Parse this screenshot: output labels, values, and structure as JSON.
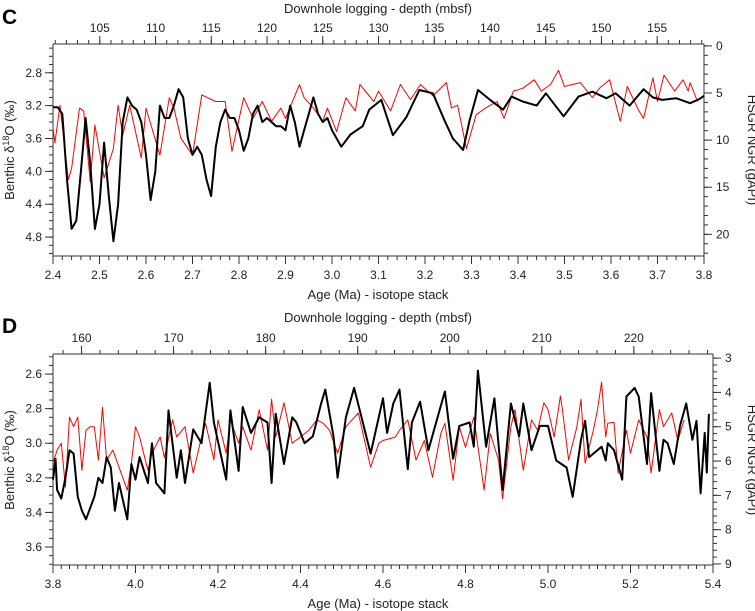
{
  "chart_data": [
    {
      "type": "line",
      "panel_label": "C",
      "top_axis_title": "Downhole logging - depth (mbsf)",
      "xlabel": "Age (Ma) - isotope stack",
      "ylabel_prefix": "Benthic δ",
      "ylabel_sup": "18",
      "ylabel_suffix": "O (‰)",
      "y2label": "HSGR NGR (gAPI)",
      "xlim": [
        2.4,
        3.8
      ],
      "ylim": [
        2.45,
        5.03
      ],
      "y2lim": [
        -0.2,
        22.3
      ],
      "toplim": [
        100.8,
        159.2
      ],
      "x_ticks": [
        "2.4",
        "2.5",
        "2.6",
        "2.7",
        "2.8",
        "2.9",
        "3.0",
        "3.1",
        "3.2",
        "3.3",
        "3.4",
        "3.5",
        "3.6",
        "3.7",
        "3.8"
      ],
      "x_minor_step": 0.02,
      "y_ticks": [
        "2.8",
        "3.2",
        "3.6",
        "4.0",
        "4.4",
        "4.8"
      ],
      "y_minor_step": 0.1,
      "y2_ticks": [
        "0",
        "5",
        "10",
        "15",
        "20"
      ],
      "y2_minor_step": 1,
      "top_ticks": [
        "105",
        "110",
        "115",
        "120",
        "125",
        "130",
        "135",
        "140",
        "145",
        "150",
        "155"
      ],
      "top_minor_step": 1,
      "y_reversed": true,
      "series": [
        {
          "name": "Benthic δ18O",
          "axis": "left",
          "color": "#000000",
          "x": [
            2.4,
            2.41,
            2.42,
            2.43,
            2.44,
            2.45,
            2.46,
            2.47,
            2.48,
            2.49,
            2.5,
            2.51,
            2.52,
            2.53,
            2.54,
            2.55,
            2.56,
            2.57,
            2.58,
            2.59,
            2.6,
            2.61,
            2.62,
            2.63,
            2.64,
            2.65,
            2.66,
            2.67,
            2.68,
            2.69,
            2.7,
            2.71,
            2.72,
            2.73,
            2.74,
            2.75,
            2.76,
            2.77,
            2.78,
            2.79,
            2.8,
            2.81,
            2.82,
            2.83,
            2.84,
            2.85,
            2.86,
            2.87,
            2.88,
            2.89,
            2.9,
            2.91,
            2.92,
            2.93,
            2.94,
            2.95,
            2.96,
            2.97,
            2.98,
            2.99,
            3.0,
            3.02,
            3.04,
            3.066,
            3.08,
            3.106,
            3.131,
            3.16,
            3.188,
            3.217,
            3.242,
            3.26,
            3.282,
            3.296,
            3.314,
            3.34,
            3.368,
            3.386,
            3.41,
            3.44,
            3.46,
            3.498,
            3.53,
            3.56,
            3.59,
            3.61,
            3.64,
            3.655,
            3.67,
            3.69,
            3.71,
            3.74,
            3.77,
            3.79,
            3.8
          ],
          "y": [
            3.22,
            3.22,
            3.3,
            4.1,
            4.7,
            4.6,
            4.0,
            3.35,
            3.9,
            4.7,
            4.4,
            3.65,
            4.3,
            4.85,
            4.4,
            3.4,
            3.1,
            3.2,
            3.25,
            3.4,
            3.8,
            4.35,
            4.0,
            3.2,
            3.35,
            3.35,
            3.2,
            3.0,
            3.1,
            3.6,
            3.8,
            3.7,
            3.8,
            4.1,
            4.3,
            3.7,
            3.4,
            3.25,
            3.35,
            3.35,
            3.5,
            3.75,
            3.6,
            3.3,
            3.2,
            3.4,
            3.35,
            3.4,
            3.45,
            3.45,
            3.5,
            3.2,
            3.4,
            3.7,
            3.5,
            3.3,
            3.1,
            3.3,
            3.4,
            3.35,
            3.5,
            3.7,
            3.55,
            3.45,
            3.25,
            3.13,
            3.56,
            3.34,
            3.01,
            3.05,
            3.38,
            3.6,
            3.74,
            3.38,
            3.01,
            3.13,
            3.25,
            3.09,
            3.15,
            3.2,
            3.05,
            3.33,
            3.09,
            3.03,
            3.11,
            3.05,
            3.2,
            3.1,
            3.0,
            3.1,
            3.13,
            3.11,
            3.17,
            3.12,
            3.08
          ]
        },
        {
          "name": "HSGR NGR",
          "axis": "right",
          "color": "#ff0000",
          "x": [
            2.4,
            2.404,
            2.415,
            2.433,
            2.44,
            2.457,
            2.466,
            2.48,
            2.49,
            2.51,
            2.53,
            2.54,
            2.55,
            2.565,
            2.59,
            2.6,
            2.63,
            2.65,
            2.66,
            2.675,
            2.7,
            2.72,
            2.75,
            2.77,
            2.785,
            2.81,
            2.83,
            2.85,
            2.87,
            2.89,
            2.9,
            2.93,
            2.94,
            2.96,
            2.98,
            2.99,
            3.01,
            3.03,
            3.05,
            3.06,
            3.09,
            3.1,
            3.126,
            3.147,
            3.169,
            3.19,
            3.217,
            3.246,
            3.257,
            3.27,
            3.289,
            3.31,
            3.33,
            3.355,
            3.37,
            3.39,
            3.41,
            3.435,
            3.45,
            3.47,
            3.487,
            3.5,
            3.534,
            3.56,
            3.575,
            3.597,
            3.62,
            3.635,
            3.66,
            3.67,
            3.69,
            3.7,
            3.714,
            3.737,
            3.755,
            3.766,
            3.77,
            3.786
          ],
          "y": [
            8.7,
            10.3,
            6.3,
            14.2,
            13.0,
            6.6,
            6.9,
            14.4,
            8.4,
            14.0,
            10.9,
            6.3,
            9.5,
            6.3,
            11.9,
            6.6,
            11.6,
            5.5,
            6.6,
            9.8,
            11.6,
            5.2,
            5.9,
            5.9,
            11.2,
            5.5,
            7.7,
            5.9,
            8.0,
            6.6,
            7.7,
            4.1,
            5.5,
            6.6,
            8.0,
            6.6,
            9.1,
            5.5,
            6.9,
            4.1,
            5.9,
            4.8,
            6.9,
            4.1,
            5.7,
            4.1,
            5.3,
            3.9,
            6.6,
            6.3,
            10.9,
            7.3,
            6.6,
            5.9,
            7.7,
            4.8,
            4.5,
            3.6,
            4.8,
            4.1,
            2.6,
            4.3,
            3.9,
            5.5,
            4.5,
            3.6,
            8.0,
            4.3,
            6.9,
            7.7,
            3.4,
            5.9,
            3.1,
            4.8,
            3.6,
            4.8,
            3.9,
            5.9
          ]
        }
      ]
    },
    {
      "type": "line",
      "panel_label": "D",
      "top_axis_title": "Downhole logging - depth (mbsf)",
      "xlabel": "Age (Ma) - isotope stack",
      "ylabel_prefix": "Benthic δ",
      "ylabel_sup": "18",
      "ylabel_suffix": "O (‰)",
      "y2label": "HSGR NGR (gAPI)",
      "xlim": [
        3.8,
        5.4
      ],
      "ylim": [
        2.484,
        3.704
      ],
      "y2lim": [
        2.88,
        9.03
      ],
      "toplim": [
        156.9,
        228.6
      ],
      "x_ticks": [
        "3.8",
        "4.0",
        "4.2",
        "4.4",
        "4.6",
        "4.8",
        "5.0",
        "5.2",
        "5.4"
      ],
      "x_minor_step": 0.02,
      "y_ticks": [
        "2.6",
        "2.8",
        "3.0",
        "3.2",
        "3.4",
        "3.6"
      ],
      "y_minor_step": 0.05,
      "y2_ticks": [
        "3",
        "4",
        "5",
        "6",
        "7",
        "8",
        "9"
      ],
      "y2_minor_step": 0.2,
      "top_ticks": [
        "160",
        "170",
        "180",
        "190",
        "200",
        "210",
        "220"
      ],
      "top_minor_step": 2,
      "y_reversed": true,
      "series": [
        {
          "name": "Benthic δ18O",
          "axis": "left",
          "color": "#000000",
          "x": [
            3.8,
            3.806,
            3.81,
            3.82,
            3.83,
            3.84,
            3.85,
            3.86,
            3.87,
            3.88,
            3.9,
            3.91,
            3.92,
            3.93,
            3.94,
            3.95,
            3.96,
            3.98,
            3.99,
            4.0,
            4.01,
            4.03,
            4.04,
            4.05,
            4.07,
            4.08,
            4.1,
            4.11,
            4.12,
            4.14,
            4.16,
            4.18,
            4.19,
            4.22,
            4.23,
            4.25,
            4.26,
            4.28,
            4.3,
            4.32,
            4.33,
            4.34,
            4.36,
            4.38,
            4.39,
            4.41,
            4.43,
            4.45,
            4.46,
            4.48,
            4.49,
            4.51,
            4.53,
            4.55,
            4.57,
            4.6,
            4.61,
            4.625,
            4.64,
            4.66,
            4.67,
            4.69,
            4.71,
            4.73,
            4.75,
            4.77,
            4.785,
            4.81,
            4.82,
            4.83,
            4.85,
            4.87,
            4.89,
            4.91,
            4.93,
            4.94,
            4.96,
            4.98,
            5.0,
            5.02,
            5.045,
            5.06,
            5.08,
            5.09,
            5.1,
            5.13,
            5.14,
            5.145,
            5.16,
            5.18,
            5.19,
            5.21,
            5.22,
            5.24,
            5.25,
            5.27,
            5.28,
            5.29,
            5.305,
            5.32,
            5.335,
            5.35,
            5.36,
            5.37,
            5.38,
            5.385,
            5.39
          ],
          "y": [
            3.21,
            3.09,
            3.27,
            3.32,
            3.2,
            3.04,
            3.06,
            3.31,
            3.39,
            3.44,
            3.31,
            3.2,
            3.23,
            3.08,
            3.14,
            3.39,
            3.23,
            3.44,
            3.12,
            3.21,
            3.08,
            3.23,
            3.0,
            3.23,
            3.29,
            2.81,
            3.2,
            3.04,
            3.23,
            2.92,
            3.0,
            2.65,
            2.88,
            3.21,
            2.81,
            3.16,
            2.79,
            2.94,
            2.85,
            2.88,
            3.23,
            2.83,
            3.12,
            2.85,
            2.88,
            3.0,
            2.96,
            2.77,
            2.69,
            2.96,
            3.2,
            2.85,
            2.68,
            2.87,
            3.06,
            2.74,
            2.94,
            2.77,
            2.69,
            3.15,
            2.88,
            2.76,
            3.04,
            2.87,
            2.7,
            3.09,
            2.9,
            2.88,
            3.02,
            2.58,
            3.02,
            2.74,
            3.27,
            2.77,
            2.96,
            2.77,
            3.04,
            2.9,
            2.9,
            3.1,
            3.14,
            3.31,
            2.98,
            2.87,
            3.08,
            3.02,
            3.1,
            3.0,
            3.04,
            3.21,
            2.73,
            2.68,
            2.73,
            3.12,
            2.71,
            3.16,
            2.98,
            3.0,
            3.12,
            2.9,
            2.77,
            2.98,
            2.87,
            3.29,
            2.94,
            3.17,
            2.83
          ]
        },
        {
          "name": "HSGR NGR",
          "axis": "right",
          "color": "#ff0000",
          "x": [
            3.8,
            3.81,
            3.82,
            3.83,
            3.84,
            3.85,
            3.86,
            3.87,
            3.88,
            3.89,
            3.9,
            3.91,
            3.92,
            3.93,
            3.945,
            3.96,
            3.98,
            3.99,
            4.0,
            4.01,
            4.03,
            4.04,
            4.06,
            4.07,
            4.09,
            4.1,
            4.12,
            4.14,
            4.16,
            4.17,
            4.19,
            4.2,
            4.22,
            4.23,
            4.25,
            4.26,
            4.28,
            4.3,
            4.32,
            4.33,
            4.34,
            4.36,
            4.38,
            4.4,
            4.42,
            4.44,
            4.455,
            4.47,
            4.49,
            4.51,
            4.54,
            4.57,
            4.59,
            4.6,
            4.63,
            4.64,
            4.66,
            4.68,
            4.7,
            4.72,
            4.74,
            4.75,
            4.77,
            4.785,
            4.8,
            4.82,
            4.845,
            4.86,
            4.88,
            4.89,
            4.91,
            4.92,
            4.94,
            4.96,
            4.975,
            4.99,
            5.0,
            5.015,
            5.03,
            5.035,
            5.05,
            5.07,
            5.08,
            5.09,
            5.11,
            5.12,
            5.13,
            5.14,
            5.145,
            5.16,
            5.17,
            5.19,
            5.2,
            5.22,
            5.24,
            5.25,
            5.27,
            5.28,
            5.3,
            5.315,
            5.33
          ],
          "y": [
            6.06,
            5.68,
            5.48,
            6.76,
            4.72,
            5.0,
            4.72,
            6.27,
            5.1,
            5.0,
            5.0,
            5.97,
            4.43,
            5.97,
            5.68,
            6.18,
            6.85,
            6.06,
            5.0,
            5.3,
            6.27,
            5.77,
            5.3,
            5.9,
            4.8,
            5.3,
            5.0,
            6.35,
            5.3,
            4.9,
            5.97,
            4.8,
            5.77,
            4.8,
            5.48,
            5.0,
            5.68,
            4.5,
            5.68,
            4.2,
            5.3,
            4.3,
            5.48,
            5.3,
            5.1,
            4.8,
            4.9,
            5.1,
            5.77,
            5.0,
            4.6,
            6.18,
            5.48,
            5.4,
            5.3,
            5.1,
            4.8,
            5.97,
            5.4,
            6.47,
            5.2,
            4.9,
            6.56,
            5.0,
            5.6,
            4.72,
            6.85,
            5.2,
            5.97,
            7.1,
            5.0,
            4.5,
            6.27,
            4.8,
            5.1,
            4.3,
            4.5,
            5.3,
            4.1,
            4.5,
            5.97,
            5.0,
            4.2,
            6.06,
            5.1,
            4.5,
            3.7,
            5.3,
            4.9,
            4.87,
            6.35,
            5.1,
            5.77,
            4.8,
            5.3,
            6.35,
            4.5,
            5.0,
            4.6,
            5.4,
            4.8
          ]
        }
      ]
    }
  ]
}
